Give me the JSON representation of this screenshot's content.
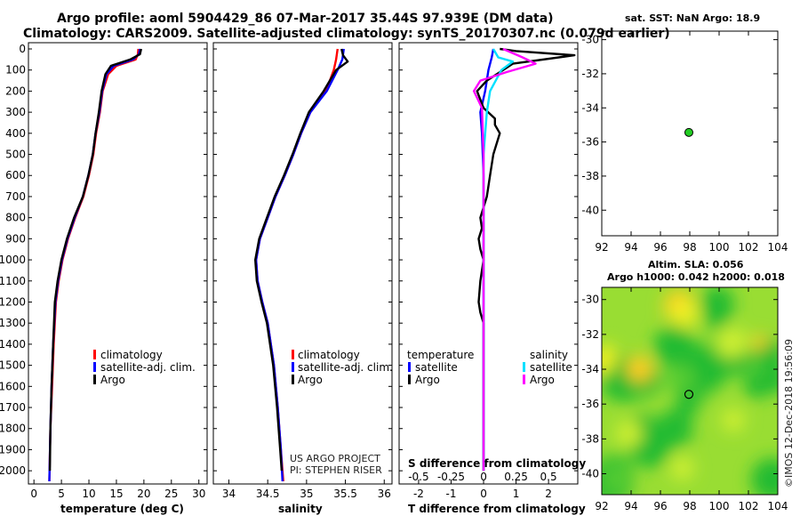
{
  "header": {
    "title_line1": "Argo profile: aoml 5904429_86 07-Mar-2017 35.44S 97.939E (DM data)",
    "title_line2": "Climatology: CARS2009. Satellite-adjusted climatology: synTS_20170307.nc (0.079d earlier)"
  },
  "colors": {
    "climatology": "#ff0000",
    "satellite": "#0000ff",
    "argo": "#000000",
    "sat_salinity": "#00e0ff",
    "argo_salinity": "#ff00ff",
    "sst_dot": "#22cc22"
  },
  "chart_data": [
    {
      "type": "line",
      "id": "temperature",
      "xlabel": "temperature (deg C)",
      "xlim": [
        -1,
        31.5
      ],
      "ylim": [
        0,
        2050
      ],
      "xticks": [
        "0",
        "5",
        "10",
        "15",
        "20",
        "25",
        "30"
      ],
      "xtick_values": [
        0,
        5,
        10,
        15,
        20,
        25,
        30
      ],
      "yticks": [
        "0",
        "100",
        "200",
        "300",
        "400",
        "500",
        "600",
        "700",
        "800",
        "900",
        "1000",
        "1100",
        "1200",
        "1300",
        "1400",
        "1500",
        "1600",
        "1700",
        "1800",
        "1900",
        "2000"
      ],
      "ytick_values": [
        0,
        100,
        200,
        300,
        400,
        500,
        600,
        700,
        800,
        900,
        1000,
        1100,
        1200,
        1300,
        1400,
        1500,
        1600,
        1700,
        1800,
        1900,
        2000
      ],
      "legend": [
        "climatology",
        "satellite-adj. clim.",
        "Argo"
      ],
      "series": [
        {
          "name": "climatology",
          "color": "#ff0000",
          "x": [
            19.0,
            18.9,
            18.5,
            15.0,
            13.5,
            12.5,
            12.0,
            11.3,
            10.8,
            10.0,
            9.0,
            7.5,
            6.2,
            5.2,
            4.5,
            4.0,
            3.6,
            3.3,
            3.0,
            2.8
          ],
          "y": [
            0,
            25,
            50,
            80,
            120,
            200,
            300,
            400,
            500,
            600,
            700,
            800,
            900,
            1000,
            1100,
            1200,
            1400,
            1600,
            1800,
            2050
          ]
        },
        {
          "name": "satellite-adj. clim.",
          "color": "#0000ff",
          "x": [
            19.3,
            19.1,
            18.0,
            14.5,
            13.2,
            12.4,
            11.9,
            11.2,
            10.7,
            9.9,
            8.9,
            7.4,
            6.1,
            5.1,
            4.4,
            3.9,
            3.5,
            3.2,
            3.0,
            2.8
          ],
          "y": [
            0,
            25,
            50,
            80,
            120,
            200,
            300,
            400,
            500,
            600,
            700,
            800,
            900,
            1000,
            1100,
            1200,
            1400,
            1600,
            1800,
            2050
          ]
        },
        {
          "name": "Argo",
          "color": "#000000",
          "x": [
            19.5,
            19.3,
            17.5,
            14.0,
            13.0,
            12.3,
            11.8,
            11.2,
            10.7,
            9.9,
            8.9,
            7.3,
            6.0,
            5.0,
            4.3,
            3.8,
            3.5,
            3.2,
            3.0,
            2.9
          ],
          "y": [
            0,
            25,
            50,
            80,
            120,
            200,
            300,
            400,
            500,
            600,
            700,
            800,
            900,
            1000,
            1100,
            1200,
            1400,
            1600,
            1800,
            2000
          ]
        }
      ]
    },
    {
      "type": "line",
      "id": "salinity",
      "xlabel": "salinity",
      "xlim": [
        33.8,
        36.1
      ],
      "ylim": [
        0,
        2050
      ],
      "xticks": [
        "34",
        "34.5",
        "35",
        "35.5",
        "36"
      ],
      "xtick_values": [
        34,
        34.5,
        35,
        35.5,
        36
      ],
      "legend": [
        "climatology",
        "satellite-adj. clim.",
        "Argo"
      ],
      "series": [
        {
          "name": "climatology",
          "color": "#ff0000",
          "x": [
            35.4,
            35.38,
            35.35,
            35.25,
            35.05,
            34.93,
            34.83,
            34.72,
            34.6,
            34.5,
            34.4,
            34.35,
            34.37,
            34.43,
            34.5,
            34.58,
            34.63,
            34.67,
            34.7
          ],
          "y": [
            0,
            50,
            100,
            200,
            300,
            400,
            500,
            600,
            700,
            800,
            900,
            1000,
            1100,
            1200,
            1300,
            1500,
            1700,
            1900,
            2050
          ]
        },
        {
          "name": "satellite-adj. clim.",
          "color": "#0000ff",
          "x": [
            35.48,
            35.46,
            35.4,
            35.26,
            35.05,
            34.93,
            34.83,
            34.72,
            34.6,
            34.5,
            34.4,
            34.35,
            34.37,
            34.43,
            34.5,
            34.58,
            34.63,
            34.67,
            34.69
          ],
          "y": [
            0,
            50,
            100,
            200,
            300,
            400,
            500,
            600,
            700,
            800,
            900,
            1000,
            1100,
            1200,
            1300,
            1500,
            1700,
            1900,
            2050
          ]
        },
        {
          "name": "Argo",
          "color": "#000000",
          "x": [
            35.45,
            35.47,
            35.53,
            35.38,
            35.22,
            35.03,
            34.92,
            34.82,
            34.71,
            34.59,
            34.49,
            34.39,
            34.34,
            34.36,
            34.42,
            34.49,
            34.57,
            34.62,
            34.66,
            34.68
          ],
          "y": [
            0,
            30,
            60,
            100,
            200,
            300,
            400,
            500,
            600,
            700,
            800,
            900,
            1000,
            1100,
            1200,
            1300,
            1500,
            1700,
            1900,
            2000
          ]
        }
      ],
      "annotation": [
        "US ARGO PROJECT",
        "PI: STEPHEN RISER"
      ]
    },
    {
      "type": "line",
      "id": "differences",
      "xlabel": "T difference from climatology",
      "xlabel_top": "S difference from climatology",
      "xlim": [
        -2.6,
        2.9
      ],
      "ylim": [
        0,
        2050
      ],
      "xticks": [
        "-2",
        "-1",
        "0",
        "1",
        "2"
      ],
      "xtick_values": [
        -2,
        -1,
        0,
        1,
        2
      ],
      "xticks_top": [
        "-0.5",
        "-0.25",
        "0",
        "0.25",
        "0.5"
      ],
      "legend_left_title": "temperature",
      "legend_right_title": "salinity",
      "legend_left": [
        "satellite",
        "Argo"
      ],
      "legend_right": [
        "satellite",
        "Argo"
      ],
      "series": [
        {
          "name": "temperature satellite",
          "color": "#0000ff",
          "x": [
            0.3,
            0.25,
            0.15,
            0.05,
            -0.1,
            -0.05,
            0.0,
            0.0,
            0.0
          ],
          "y": [
            0,
            40,
            100,
            200,
            300,
            400,
            600,
            1000,
            2000
          ]
        },
        {
          "name": "temperature Argo",
          "color": "#000000",
          "x": [
            0.5,
            1.0,
            2.8,
            0.9,
            0.1,
            -0.2,
            0.0,
            0.35,
            0.35,
            0.5,
            0.3,
            0.2,
            0.1,
            -0.1,
            -0.05,
            -0.15,
            -0.1,
            0.0,
            -0.05,
            -0.1,
            -0.15,
            -0.1,
            0.0,
            0.0,
            0.0
          ],
          "y": [
            0,
            10,
            30,
            70,
            150,
            200,
            280,
            330,
            360,
            400,
            500,
            600,
            700,
            800,
            850,
            900,
            950,
            1000,
            1050,
            1100,
            1200,
            1250,
            1300,
            1600,
            2000
          ]
        },
        {
          "name": "salinity satellite",
          "color": "#00e0ff",
          "x": [
            0.3,
            0.45,
            0.9,
            0.55,
            0.2,
            0.1,
            0.0,
            0.0,
            0.0
          ],
          "y": [
            0,
            40,
            60,
            100,
            200,
            300,
            500,
            1000,
            2000
          ]
        },
        {
          "name": "salinity Argo",
          "color": "#ff00ff",
          "x": [
            0.6,
            1.2,
            1.6,
            0.7,
            -0.1,
            -0.3,
            -0.05,
            0.0,
            0.0,
            0.0
          ],
          "y": [
            0,
            40,
            70,
            110,
            150,
            200,
            280,
            500,
            1000,
            2000
          ]
        }
      ]
    },
    {
      "type": "scatter",
      "id": "sst_map",
      "title": "sat. SST: NaN Argo: 18.9",
      "xlim": [
        92,
        104
      ],
      "ylim": [
        -41.5,
        -29.5
      ],
      "xticks": [
        "92",
        "94",
        "96",
        "98",
        "100",
        "102",
        "104"
      ],
      "xtick_values": [
        92,
        94,
        96,
        98,
        100,
        102,
        104
      ],
      "yticks": [
        "-30",
        "-32",
        "-34",
        "-36",
        "-38",
        "-40"
      ],
      "ytick_values": [
        -30,
        -32,
        -34,
        -36,
        -38,
        -40
      ],
      "points": [
        {
          "lon": 97.939,
          "lat": -35.44
        }
      ]
    },
    {
      "type": "heatmap",
      "id": "sla_map",
      "title_line1": "Altim. SLA: 0.056",
      "title_line2": "Argo h1000: 0.042 h2000: 0.018",
      "xlim": [
        92,
        104
      ],
      "ylim": [
        -41.2,
        -29.3
      ],
      "xticks": [
        "92",
        "94",
        "96",
        "98",
        "100",
        "102",
        "104"
      ],
      "xtick_values": [
        92,
        94,
        96,
        98,
        100,
        102,
        104
      ],
      "yticks": [
        "-30",
        "-32",
        "-34",
        "-36",
        "-38",
        "-40"
      ],
      "ytick_values": [
        -30,
        -32,
        -34,
        -36,
        -38,
        -40
      ],
      "points": [
        {
          "lon": 97.939,
          "lat": -35.44
        }
      ],
      "colors": [
        "#22bb33",
        "#55cc33",
        "#99dd33",
        "#ccee33",
        "#eeee22",
        "#ffcc22"
      ],
      "grid_note": "sea level anomaly field (qualitative)"
    }
  ],
  "footer": {
    "stamp": "©IMOS 12-Dec-2018 19:56:09"
  }
}
